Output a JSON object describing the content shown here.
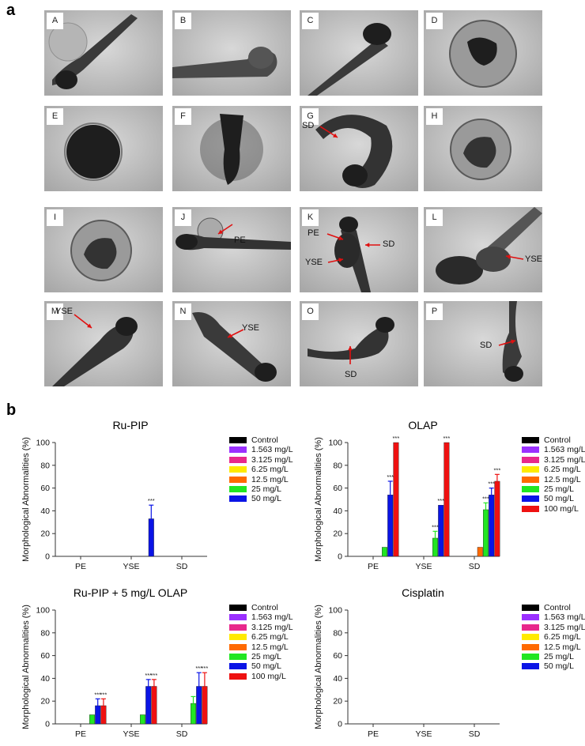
{
  "panel_a_label": "a",
  "panel_b_label": "b",
  "tiles": [
    {
      "label": "A",
      "annotations": []
    },
    {
      "label": "B",
      "annotations": []
    },
    {
      "label": "C",
      "annotations": []
    },
    {
      "label": "D",
      "annotations": []
    },
    {
      "label": "E",
      "annotations": []
    },
    {
      "label": "F",
      "annotations": []
    },
    {
      "label": "G",
      "annotations": [
        "SD"
      ]
    },
    {
      "label": "H",
      "annotations": []
    },
    {
      "label": "I",
      "annotations": []
    },
    {
      "label": "J",
      "annotations": [
        "PE"
      ]
    },
    {
      "label": "K",
      "annotations": [
        "PE",
        "SD",
        "YSE"
      ]
    },
    {
      "label": "L",
      "annotations": [
        "YSE"
      ]
    },
    {
      "label": "M",
      "annotations": [
        "YSE"
      ]
    },
    {
      "label": "N",
      "annotations": [
        "YSE"
      ]
    },
    {
      "label": "O",
      "annotations": [
        "SD"
      ]
    },
    {
      "label": "P",
      "annotations": [
        "SD"
      ]
    }
  ],
  "colors": {
    "Control": "#000000",
    "1.563 mg/L": "#9b30ff",
    "3.125 mg/L": "#e8288c",
    "6.25 mg/L": "#ffea00",
    "12.5 mg/L": "#ff6a00",
    "25 mg/L": "#22e622",
    "50 mg/L": "#0a14e6",
    "100 mg/L": "#ee1111"
  },
  "chart_data": [
    {
      "type": "bar",
      "title": "Ru-PIP",
      "ylabel": "Morphological Abnormalities (%)",
      "ylim": [
        0,
        100
      ],
      "yticks": [
        "0",
        "20",
        "40",
        "60",
        "80",
        "100"
      ],
      "categories": [
        "PE",
        "YSE",
        "SD"
      ],
      "legend": [
        "Control",
        "1.563 mg/L",
        "3.125 mg/L",
        "6.25 mg/L",
        "12.5 mg/L",
        "25 mg/L",
        "50 mg/L"
      ],
      "series": [
        {
          "name": "Control",
          "values": [
            0,
            0,
            0
          ],
          "err": [
            0,
            0,
            0
          ],
          "sig": [
            "",
            "",
            ""
          ]
        },
        {
          "name": "1.563 mg/L",
          "values": [
            0,
            0,
            0
          ],
          "err": [
            0,
            0,
            0
          ],
          "sig": [
            "",
            "",
            ""
          ]
        },
        {
          "name": "3.125 mg/L",
          "values": [
            0,
            0,
            0
          ],
          "err": [
            0,
            0,
            0
          ],
          "sig": [
            "",
            "",
            ""
          ]
        },
        {
          "name": "6.25 mg/L",
          "values": [
            0,
            0,
            0
          ],
          "err": [
            0,
            0,
            0
          ],
          "sig": [
            "",
            "",
            ""
          ]
        },
        {
          "name": "12.5 mg/L",
          "values": [
            0,
            0,
            0
          ],
          "err": [
            0,
            0,
            0
          ],
          "sig": [
            "",
            "",
            ""
          ]
        },
        {
          "name": "25 mg/L",
          "values": [
            0,
            0,
            0
          ],
          "err": [
            0,
            0,
            0
          ],
          "sig": [
            "",
            "",
            ""
          ]
        },
        {
          "name": "50 mg/L",
          "values": [
            0,
            33,
            0
          ],
          "err": [
            0,
            12,
            0
          ],
          "sig": [
            "",
            "***",
            ""
          ]
        }
      ]
    },
    {
      "type": "bar",
      "title": "OLAP",
      "ylabel": "Morphological Abnormalities (%)",
      "ylim": [
        0,
        100
      ],
      "yticks": [
        "0",
        "20",
        "40",
        "60",
        "80",
        "100"
      ],
      "categories": [
        "PE",
        "YSE",
        "SD"
      ],
      "legend": [
        "Control",
        "1.563 mg/L",
        "3.125 mg/L",
        "6.25 mg/L",
        "12.5 mg/L",
        "25 mg/L",
        "50 mg/L",
        "100 mg/L"
      ],
      "series": [
        {
          "name": "Control",
          "values": [
            0,
            0,
            0
          ],
          "err": [
            0,
            0,
            0
          ],
          "sig": [
            "",
            "",
            ""
          ]
        },
        {
          "name": "1.563 mg/L",
          "values": [
            0,
            0,
            0
          ],
          "err": [
            0,
            0,
            0
          ],
          "sig": [
            "",
            "",
            ""
          ]
        },
        {
          "name": "3.125 mg/L",
          "values": [
            0,
            0,
            0
          ],
          "err": [
            0,
            0,
            0
          ],
          "sig": [
            "",
            "",
            ""
          ]
        },
        {
          "name": "6.25 mg/L",
          "values": [
            0,
            0,
            0
          ],
          "err": [
            0,
            0,
            0
          ],
          "sig": [
            "",
            "",
            ""
          ]
        },
        {
          "name": "12.5 mg/L",
          "values": [
            0,
            0,
            8
          ],
          "err": [
            0,
            0,
            0
          ],
          "sig": [
            "",
            "",
            ""
          ]
        },
        {
          "name": "25 mg/L",
          "values": [
            8,
            16,
            41
          ],
          "err": [
            0,
            6,
            6
          ],
          "sig": [
            "",
            "***",
            "***"
          ]
        },
        {
          "name": "50 mg/L",
          "values": [
            54,
            45,
            54
          ],
          "err": [
            12,
            0,
            6
          ],
          "sig": [
            "***",
            "***",
            "***"
          ]
        },
        {
          "name": "100 mg/L",
          "values": [
            100,
            100,
            66
          ],
          "err": [
            0,
            0,
            6
          ],
          "sig": [
            "***",
            "***",
            "***"
          ]
        }
      ]
    },
    {
      "type": "bar",
      "title": "Ru-PIP + 5 mg/L OLAP",
      "ylabel": "Morphological Abnormalities (%)",
      "ylim": [
        0,
        100
      ],
      "yticks": [
        "0",
        "20",
        "40",
        "60",
        "80",
        "100"
      ],
      "categories": [
        "PE",
        "YSE",
        "SD"
      ],
      "legend": [
        "Control",
        "1.563 mg/L",
        "3.125 mg/L",
        "6.25 mg/L",
        "12.5 mg/L",
        "25 mg/L",
        "50 mg/L",
        "100 mg/L"
      ],
      "series": [
        {
          "name": "Control",
          "values": [
            0,
            0,
            0
          ],
          "err": [
            0,
            0,
            0
          ],
          "sig": [
            "",
            "",
            ""
          ]
        },
        {
          "name": "1.563 mg/L",
          "values": [
            0,
            0,
            0
          ],
          "err": [
            0,
            0,
            0
          ],
          "sig": [
            "",
            "",
            ""
          ]
        },
        {
          "name": "3.125 mg/L",
          "values": [
            0,
            0,
            0
          ],
          "err": [
            0,
            0,
            0
          ],
          "sig": [
            "",
            "",
            ""
          ]
        },
        {
          "name": "6.25 mg/L",
          "values": [
            0,
            0,
            0
          ],
          "err": [
            0,
            0,
            0
          ],
          "sig": [
            "",
            "",
            ""
          ]
        },
        {
          "name": "12.5 mg/L",
          "values": [
            0,
            0,
            0
          ],
          "err": [
            0,
            0,
            0
          ],
          "sig": [
            "",
            "",
            ""
          ]
        },
        {
          "name": "25 mg/L",
          "values": [
            8,
            8,
            18
          ],
          "err": [
            0,
            0,
            6
          ],
          "sig": [
            "",
            "",
            ""
          ]
        },
        {
          "name": "50 mg/L",
          "values": [
            16,
            33,
            33
          ],
          "err": [
            6,
            6,
            12
          ],
          "sig": [
            "***",
            "***",
            "***"
          ]
        },
        {
          "name": "100 mg/L",
          "values": [
            16,
            33,
            33
          ],
          "err": [
            6,
            6,
            12
          ],
          "sig": [
            "***",
            "***",
            "***"
          ]
        }
      ]
    },
    {
      "type": "bar",
      "title": "Cisplatin",
      "ylabel": "Morphological Abnormalities (%)",
      "ylim": [
        0,
        100
      ],
      "yticks": [
        "0",
        "20",
        "40",
        "60",
        "80",
        "100"
      ],
      "categories": [
        "PE",
        "YSE",
        "SD"
      ],
      "legend": [
        "Control",
        "1.563 mg/L",
        "3.125 mg/L",
        "6.25 mg/L",
        "12.5 mg/L",
        "25 mg/L",
        "50 mg/L"
      ],
      "series": [
        {
          "name": "Control",
          "values": [
            0,
            0,
            0
          ],
          "err": [
            0,
            0,
            0
          ],
          "sig": [
            "",
            "",
            ""
          ]
        },
        {
          "name": "1.563 mg/L",
          "values": [
            0,
            0,
            0
          ],
          "err": [
            0,
            0,
            0
          ],
          "sig": [
            "",
            "",
            ""
          ]
        },
        {
          "name": "3.125 mg/L",
          "values": [
            0,
            0,
            0
          ],
          "err": [
            0,
            0,
            0
          ],
          "sig": [
            "",
            "",
            ""
          ]
        },
        {
          "name": "6.25 mg/L",
          "values": [
            0,
            0,
            0
          ],
          "err": [
            0,
            0,
            0
          ],
          "sig": [
            "",
            "",
            ""
          ]
        },
        {
          "name": "12.5 mg/L",
          "values": [
            0,
            0,
            0
          ],
          "err": [
            0,
            0,
            0
          ],
          "sig": [
            "",
            "",
            ""
          ]
        },
        {
          "name": "25 mg/L",
          "values": [
            0,
            0,
            0
          ],
          "err": [
            0,
            0,
            0
          ],
          "sig": [
            "",
            "",
            ""
          ]
        },
        {
          "name": "50 mg/L",
          "values": [
            0,
            0,
            0
          ],
          "err": [
            0,
            0,
            0
          ],
          "sig": [
            "",
            "",
            ""
          ]
        }
      ]
    }
  ]
}
